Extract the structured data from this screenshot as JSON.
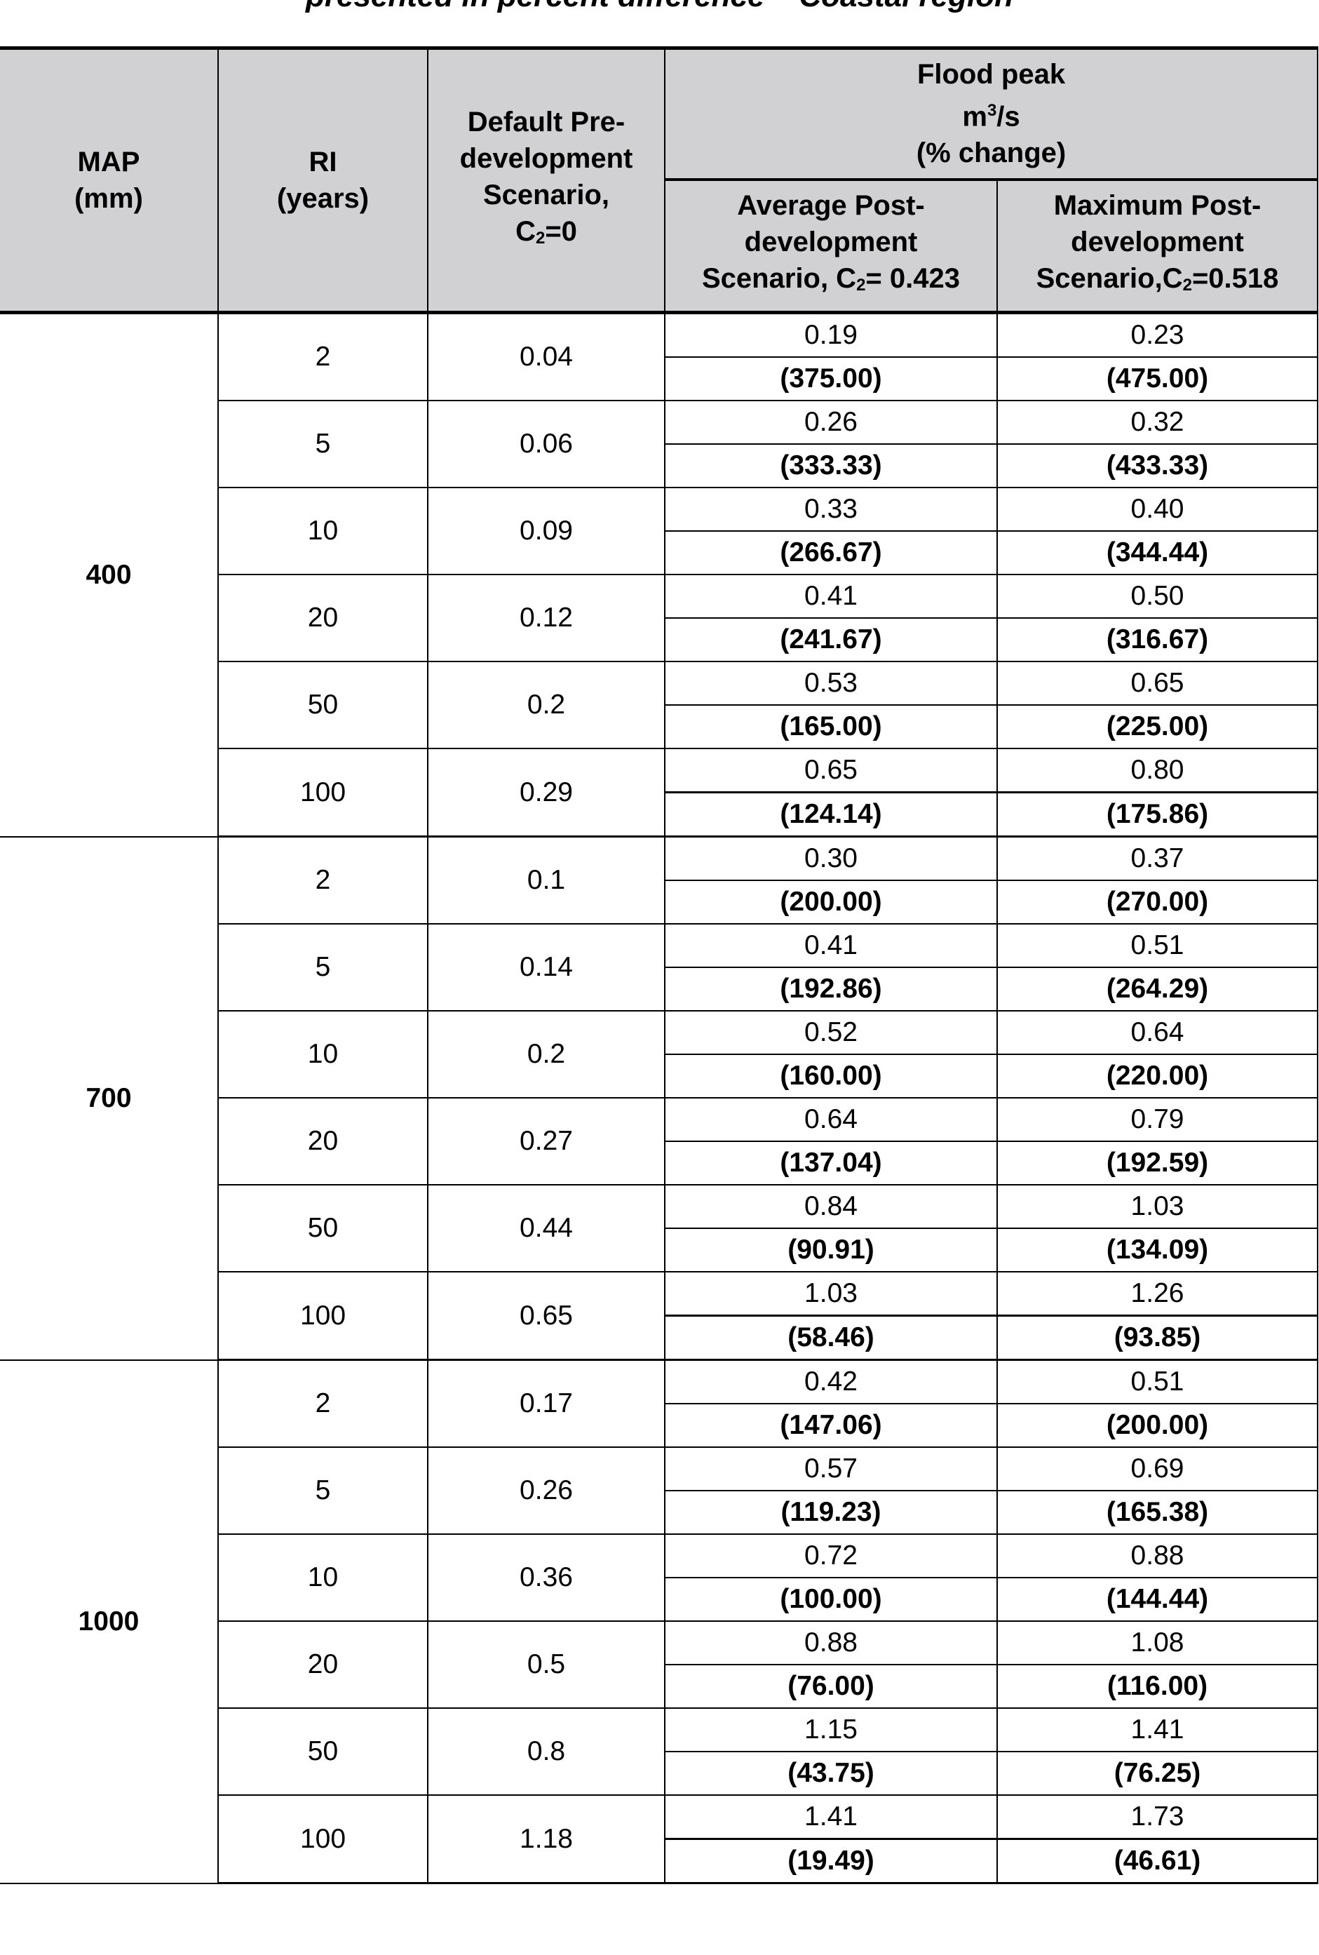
{
  "title": "presented in percent difference – Coastal region",
  "header": {
    "map": [
      "MAP",
      "(mm)"
    ],
    "ri": [
      "RI",
      "(years)"
    ],
    "pre": [
      "Default Pre-",
      "development",
      "Scenario,",
      "C",
      "2",
      "=0"
    ],
    "flood": [
      "Flood peak",
      "m",
      "3",
      "/s",
      "(% change)"
    ],
    "avg": [
      "Average Post-",
      "development",
      "Scenario, C",
      "2",
      "= 0.423"
    ],
    "max": [
      "Maximum Post-",
      "development",
      "Scenario,C",
      "2",
      "=0.518"
    ]
  },
  "groups": [
    {
      "map": "400",
      "rows": [
        {
          "ri": "2",
          "pre": "0.04",
          "avg": "0.19",
          "avg_pct": "(375.00)",
          "max": "0.23",
          "max_pct": "(475.00)"
        },
        {
          "ri": "5",
          "pre": "0.06",
          "avg": "0.26",
          "avg_pct": "(333.33)",
          "max": "0.32",
          "max_pct": "(433.33)"
        },
        {
          "ri": "10",
          "pre": "0.09",
          "avg": "0.33",
          "avg_pct": "(266.67)",
          "max": "0.40",
          "max_pct": "(344.44)"
        },
        {
          "ri": "20",
          "pre": "0.12",
          "avg": "0.41",
          "avg_pct": "(241.67)",
          "max": "0.50",
          "max_pct": "(316.67)"
        },
        {
          "ri": "50",
          "pre": "0.2",
          "avg": "0.53",
          "avg_pct": "(165.00)",
          "max": "0.65",
          "max_pct": "(225.00)"
        },
        {
          "ri": "100",
          "pre": "0.29",
          "avg": "0.65",
          "avg_pct": "(124.14)",
          "max": "0.80",
          "max_pct": "(175.86)"
        }
      ]
    },
    {
      "map": "700",
      "rows": [
        {
          "ri": "2",
          "pre": "0.1",
          "avg": "0.30",
          "avg_pct": "(200.00)",
          "max": "0.37",
          "max_pct": "(270.00)"
        },
        {
          "ri": "5",
          "pre": "0.14",
          "avg": "0.41",
          "avg_pct": "(192.86)",
          "max": "0.51",
          "max_pct": "(264.29)"
        },
        {
          "ri": "10",
          "pre": "0.2",
          "avg": "0.52",
          "avg_pct": "(160.00)",
          "max": "0.64",
          "max_pct": "(220.00)"
        },
        {
          "ri": "20",
          "pre": "0.27",
          "avg": "0.64",
          "avg_pct": "(137.04)",
          "max": "0.79",
          "max_pct": "(192.59)"
        },
        {
          "ri": "50",
          "pre": "0.44",
          "avg": "0.84",
          "avg_pct": "(90.91)",
          "max": "1.03",
          "max_pct": "(134.09)"
        },
        {
          "ri": "100",
          "pre": "0.65",
          "avg": "1.03",
          "avg_pct": "(58.46)",
          "max": "1.26",
          "max_pct": "(93.85)"
        }
      ]
    },
    {
      "map": "1000",
      "rows": [
        {
          "ri": "2",
          "pre": "0.17",
          "avg": "0.42",
          "avg_pct": "(147.06)",
          "max": "0.51",
          "max_pct": "(200.00)"
        },
        {
          "ri": "5",
          "pre": "0.26",
          "avg": "0.57",
          "avg_pct": "(119.23)",
          "max": "0.69",
          "max_pct": "(165.38)"
        },
        {
          "ri": "10",
          "pre": "0.36",
          "avg": "0.72",
          "avg_pct": "(100.00)",
          "max": "0.88",
          "max_pct": "(144.44)"
        },
        {
          "ri": "20",
          "pre": "0.5",
          "avg": "0.88",
          "avg_pct": "(76.00)",
          "max": "1.08",
          "max_pct": "(116.00)"
        },
        {
          "ri": "50",
          "pre": "0.8",
          "avg": "1.15",
          "avg_pct": "(43.75)",
          "max": "1.41",
          "max_pct": "(76.25)"
        },
        {
          "ri": "100",
          "pre": "1.18",
          "avg": "1.41",
          "avg_pct": "(19.49)",
          "max": "1.73",
          "max_pct": "(46.61)"
        }
      ]
    }
  ]
}
